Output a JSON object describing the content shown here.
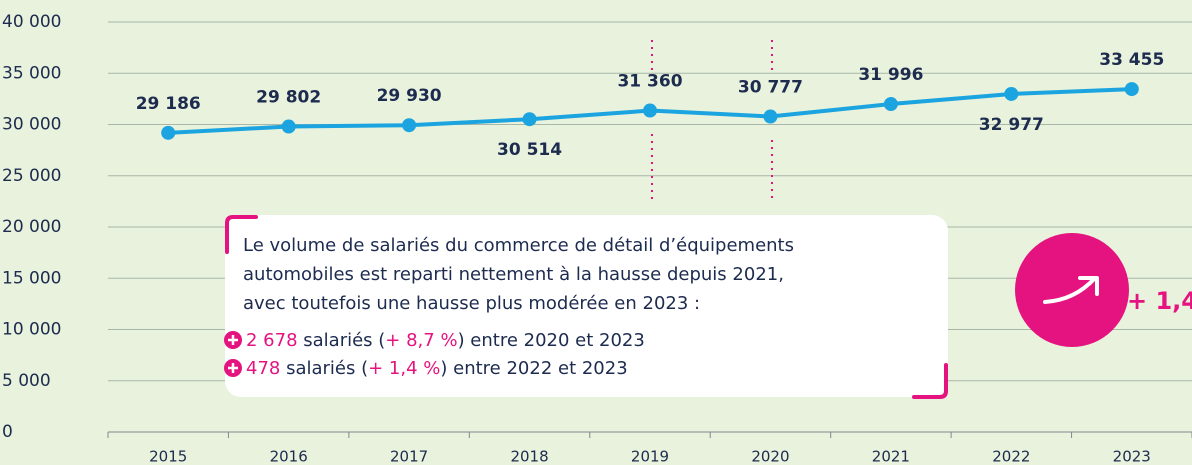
{
  "chart_data": {
    "type": "line",
    "categories": [
      "2015",
      "2016",
      "2017",
      "2018",
      "2019",
      "2020",
      "2021",
      "2022",
      "2023"
    ],
    "series": [
      {
        "color": "#1ba4df",
        "values": [
          29186,
          29802,
          29930,
          30514,
          31360,
          30777,
          31996,
          32977,
          33455
        ],
        "value_labels": [
          "29 186",
          "29 802",
          "29 930",
          "30 514",
          "31 360",
          "30 777",
          "31 996",
          "32 977",
          "33 455"
        ]
      }
    ],
    "ylim": [
      0,
      40000
    ],
    "yticks": [
      0,
      {
        "value": 5000,
        "label": "5 000"
      },
      {
        "value": 10000,
        "label": "10 000"
      },
      {
        "value": 15000,
        "label": "15 000"
      },
      {
        "value": 20000,
        "label": "20 000"
      },
      {
        "value": 25000,
        "label": "25 000"
      },
      {
        "value": 30000,
        "label": "30 000"
      },
      {
        "value": 35000,
        "label": "35 000"
      },
      {
        "value": 40000,
        "label": "40 000"
      }
    ],
    "grid": true,
    "annotation": {
      "lines": [
        "Le volume de salariés du commerce de détail d’équipements",
        "automobiles est reparti nettement à la hausse depuis 2021,",
        "avec toutefois une hausse plus modérée en 2023 :"
      ],
      "bullets": [
        [
          "2 678",
          " salariés (",
          "+ 8,7 %",
          ") entre 2020 et 2023"
        ],
        [
          "478",
          " salariés (",
          "+ 1,4 %",
          ") entre 2022 et 2023"
        ]
      ]
    },
    "badge": "+ 1,4"
  }
}
